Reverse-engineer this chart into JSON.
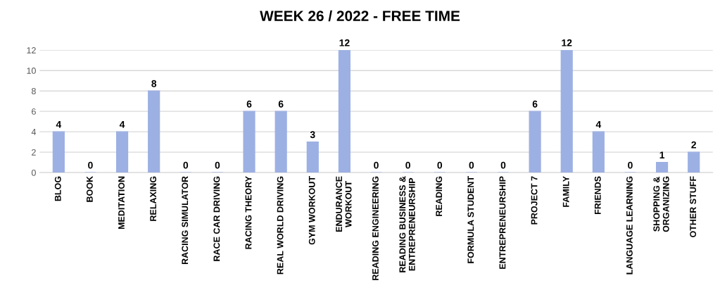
{
  "chart_data": {
    "type": "bar",
    "title": "WEEK 26 / 2022 - FREE TIME",
    "categories": [
      "BLOG",
      "BOOK",
      "MEDITATION",
      "RELAXING",
      "RACING SIMULATOR",
      "RACE CAR DRIVING",
      "RACING THEORY",
      "REAL WORLD DRIVING",
      "GYM WORKOUT",
      "ENDURANCE\nWORKOUT",
      "READING ENGINEERING",
      "READING BUSINESS &\nENTREPRENEURSHIP",
      "READING",
      "FORMULA STUDENT",
      "ENTREPRENEURSHIP",
      "PROJECT 7",
      "FAMILY",
      "FRIENDS",
      "LANGUAGE LEARNING",
      "SHOPPING &\nORGANIZING",
      "OTHER STUFF"
    ],
    "values": [
      4,
      0,
      4,
      8,
      0,
      0,
      6,
      6,
      3,
      12,
      0,
      0,
      0,
      0,
      0,
      6,
      12,
      4,
      0,
      1,
      2
    ],
    "color": "#9db0e3",
    "ylim": [
      0,
      12
    ],
    "yticks": [
      0,
      2,
      4,
      6,
      8,
      10,
      12
    ],
    "grid": "y",
    "data_labels": true
  }
}
